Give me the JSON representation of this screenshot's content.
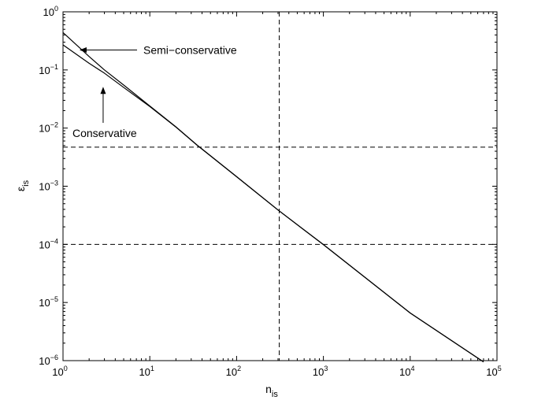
{
  "chart_data": {
    "type": "line",
    "xlabel": "n",
    "xlabel_sub": "is",
    "ylabel": "ε",
    "ylabel_sub": "is",
    "x_scale": "log",
    "y_scale": "log",
    "xlim": [
      1,
      100000
    ],
    "ylim": [
      1e-06,
      1
    ],
    "x_ticks": [
      {
        "value": 1,
        "base": "10",
        "exp": "0"
      },
      {
        "value": 10,
        "base": "10",
        "exp": "1"
      },
      {
        "value": 100,
        "base": "10",
        "exp": "2"
      },
      {
        "value": 1000,
        "base": "10",
        "exp": "3"
      },
      {
        "value": 10000,
        "base": "10",
        "exp": "4"
      },
      {
        "value": 100000,
        "base": "10",
        "exp": "5"
      }
    ],
    "y_ticks": [
      {
        "value": 1e-06,
        "base": "10",
        "exp": "−6"
      },
      {
        "value": 1e-05,
        "base": "10",
        "exp": "−5"
      },
      {
        "value": 0.0001,
        "base": "10",
        "exp": "−4"
      },
      {
        "value": 0.001,
        "base": "10",
        "exp": "−3"
      },
      {
        "value": 0.01,
        "base": "10",
        "exp": "−2"
      },
      {
        "value": 0.1,
        "base": "10",
        "exp": "−1"
      },
      {
        "value": 1,
        "base": "10",
        "exp": "0"
      }
    ],
    "grid": false,
    "series": [
      {
        "name": "Semi-conservative",
        "x": [
          1,
          2,
          3,
          5,
          10,
          20,
          35,
          100,
          300,
          1000,
          10000,
          70000
        ],
        "y": [
          0.44,
          0.17,
          0.1,
          0.055,
          0.024,
          0.0105,
          0.0051,
          0.00146,
          0.00039,
          9.9e-05,
          6.6e-06,
          9.5e-07
        ]
      },
      {
        "name": "Conservative",
        "x": [
          1,
          2,
          3,
          5,
          10,
          20,
          35,
          100,
          300,
          1000,
          10000,
          70000
        ],
        "y": [
          0.27,
          0.13,
          0.088,
          0.05,
          0.0235,
          0.0104,
          0.0051,
          0.00146,
          0.00039,
          9.9e-05,
          6.6e-06,
          9.5e-07
        ]
      }
    ],
    "reference_lines": [
      {
        "orientation": "horizontal",
        "value": 0.0047,
        "style": "dashed"
      },
      {
        "orientation": "horizontal",
        "value": 0.0001,
        "style": "dashed"
      },
      {
        "orientation": "vertical",
        "value": 310,
        "style": "dashed"
      }
    ],
    "annotations": [
      {
        "text": "Semi−conservative",
        "arrow_to": {
          "x": 1.55,
          "y": 0.22
        }
      },
      {
        "text": "Conservative",
        "arrow_to": {
          "x": 2.9,
          "y": 0.09
        }
      }
    ]
  }
}
